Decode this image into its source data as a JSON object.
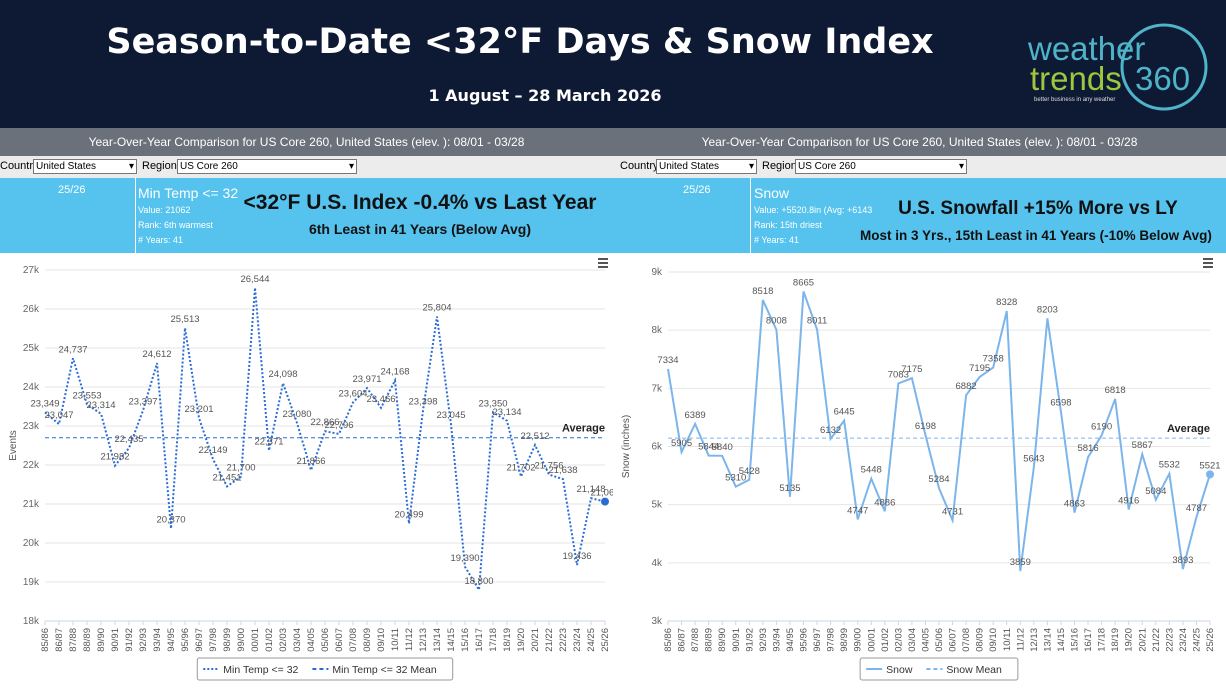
{
  "header": {
    "title": "Season-to-Date <32°F Days & Snow Index",
    "subtitle": "1 August – 28 March 2026"
  },
  "logo": {
    "word1": "weather",
    "word2": "trends",
    "word3": "360",
    "tagline": "better business in any weather"
  },
  "panels": [
    {
      "comparison": "Year-Over-Year Comparison for US Core 260, United States (elev. ): 08/01 - 03/28",
      "country_label": "Country:",
      "country": "United States",
      "region_label": "Region:",
      "region": "US Core 260",
      "season": "25/26",
      "metric": "Min Temp <= 32",
      "value": "Value: 21062",
      "rank": "Rank: 6th warmest",
      "years": "# Years: 41",
      "headline": "<32°F U.S. Index -0.4% vs Last Year",
      "subheadline": "6th Least in 41 Years (Below Avg)"
    },
    {
      "comparison": "Year-Over-Year Comparison for US Core 260, United States (elev. ): 08/01 - 03/28",
      "country_label": "Country:",
      "country": "United States",
      "region_label": "Region:",
      "region": "US Core 260",
      "season": "25/26",
      "metric": "Snow",
      "value": "Value: +5520.8in (Avg: +6143.0",
      "rank": "Rank: 15th driest",
      "years": "# Years: 41",
      "headline": "U.S. Snowfall +15% More vs LY",
      "subheadline": "Most in 3 Yrs., 15th Least in 41 Years (-10% Below Avg)"
    }
  ],
  "chart_data": [
    {
      "type": "line",
      "ylabel": "Events",
      "annotation": "Average",
      "grid": true,
      "categories": [
        "85/86",
        "86/87",
        "87/88",
        "88/89",
        "89/90",
        "90/91",
        "91/92",
        "92/93",
        "93/94",
        "94/95",
        "95/96",
        "96/97",
        "97/98",
        "98/99",
        "99/00",
        "00/01",
        "01/02",
        "02/03",
        "03/04",
        "04/05",
        "05/06",
        "06/07",
        "07/08",
        "08/09",
        "09/10",
        "10/11",
        "11/12",
        "12/13",
        "13/14",
        "14/15",
        "15/16",
        "16/17",
        "17/18",
        "18/19",
        "19/20",
        "20/21",
        "21/22",
        "22/23",
        "23/24",
        "24/25",
        "25/26"
      ],
      "series": [
        {
          "name": "Min Temp <= 32",
          "color": "#2b6cd4",
          "dash": "dotted",
          "values": [
            23349,
            23047,
            24737,
            23553,
            23314,
            21982,
            22435,
            23397,
            24612,
            20370,
            25513,
            23201,
            22149,
            21451,
            21700,
            26544,
            22371,
            24098,
            23080,
            21866,
            22866,
            22796,
            23604,
            23971,
            23466,
            24168,
            20499,
            23398,
            25804,
            23045,
            19390,
            18800,
            23350,
            23134,
            21702,
            22512,
            21756,
            21638,
            19436,
            21148,
            21062
          ],
          "value_labels": [
            "23,349",
            "23,047",
            "24,737",
            "23,553",
            "23,314",
            "21,982",
            "22,435",
            "23,397",
            "24,612",
            "20,370",
            "25,513",
            "23,201",
            "22,149",
            "21,451",
            "21,700",
            "26,544",
            "22,371",
            "24,098",
            "23,080",
            "21,866",
            "22,866",
            "22,796",
            "23,604",
            "23,971",
            "23,466",
            "24,168",
            "20,499",
            "23,398",
            "25,804",
            "23,045",
            "19,390",
            "18,800",
            "23,350",
            "23,134",
            "21,702",
            "22,512",
            "21,756",
            "21,638",
            "19,436",
            "21,148",
            "21,062"
          ]
        }
      ],
      "mean": {
        "name": "Min Temp <= 32 Mean",
        "value": 22700
      },
      "ylim": [
        18000,
        27000
      ],
      "yticks": [
        {
          "value": 18000,
          "label": "18k"
        },
        {
          "value": 19000,
          "label": "19k"
        },
        {
          "value": 20000,
          "label": "20k"
        },
        {
          "value": 21000,
          "label": "21k"
        },
        {
          "value": 22000,
          "label": "22k"
        },
        {
          "value": 23000,
          "label": "23k"
        },
        {
          "value": 24000,
          "label": "24k"
        },
        {
          "value": 25000,
          "label": "25k"
        },
        {
          "value": 26000,
          "label": "26k"
        },
        {
          "value": 27000,
          "label": "27k"
        }
      ]
    },
    {
      "type": "line",
      "ylabel": "Snow (inches)",
      "annotation": "Average",
      "grid": true,
      "categories": [
        "85/86",
        "86/87",
        "87/88",
        "88/89",
        "89/90",
        "90/91",
        "91/92",
        "92/93",
        "93/94",
        "94/95",
        "95/96",
        "96/97",
        "97/98",
        "98/99",
        "99/00",
        "00/01",
        "01/02",
        "02/03",
        "03/04",
        "04/05",
        "05/06",
        "06/07",
        "07/08",
        "08/09",
        "09/10",
        "10/11",
        "11/12",
        "12/13",
        "13/14",
        "14/15",
        "15/16",
        "16/17",
        "17/18",
        "18/19",
        "19/20",
        "20/21",
        "21/22",
        "22/23",
        "23/24",
        "24/25",
        "25/26"
      ],
      "series": [
        {
          "name": "Snow",
          "color": "#7cb5ec",
          "dash": "solid",
          "values": [
            7334,
            5905,
            6389,
            5844,
            5840,
            5310,
            5428,
            8518,
            8008,
            5135,
            8665,
            8011,
            6132,
            6445,
            4747,
            5448,
            4886,
            7083,
            7175,
            6198,
            5284,
            4731,
            6882,
            7195,
            7358,
            8328,
            3859,
            5643,
            8203,
            6598,
            4863,
            5816,
            6190,
            6818,
            4916,
            5867,
            5084,
            5532,
            3893,
            4787,
            5521
          ]
        }
      ],
      "mean": {
        "name": "Snow Mean",
        "value": 6143
      },
      "ylim": [
        3000,
        9000
      ],
      "yticks": [
        {
          "value": 3000,
          "label": "3k"
        },
        {
          "value": 4000,
          "label": "4k"
        },
        {
          "value": 5000,
          "label": "5k"
        },
        {
          "value": 6000,
          "label": "6k"
        },
        {
          "value": 7000,
          "label": "7k"
        },
        {
          "value": 8000,
          "label": "8k"
        },
        {
          "value": 9000,
          "label": "9k"
        }
      ]
    }
  ]
}
